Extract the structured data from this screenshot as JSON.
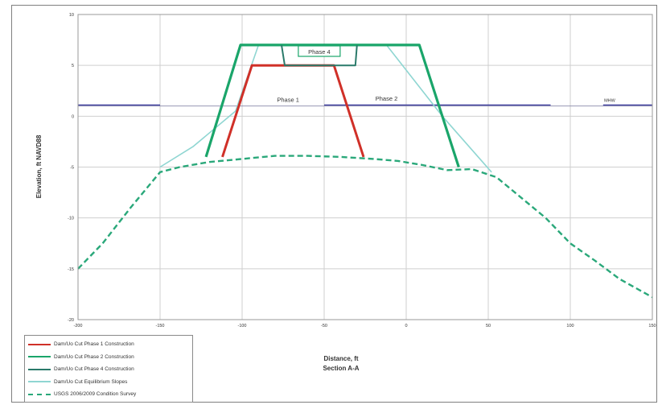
{
  "chart_data": {
    "type": "line",
    "title": "",
    "xlabel": "Distance, ft",
    "xlabel2": "Section A-A",
    "ylabel": "Elevation, ft NAVD88",
    "xlim": [
      -200,
      150
    ],
    "ylim": [
      -20,
      10
    ],
    "xticks": [
      -200,
      -150,
      -100,
      -50,
      0,
      50,
      100,
      150
    ],
    "xtick_labels": [
      "-200",
      "-150",
      "-100",
      "-50",
      "0",
      "50",
      "100",
      "150"
    ],
    "yticks": [
      -20,
      -15,
      -10,
      -5,
      0,
      5,
      10
    ],
    "ytick_labels": [
      "-20",
      "-15",
      "-10",
      "-5",
      "0",
      "5",
      "10"
    ],
    "grid": true,
    "legend_position": "bottom-left",
    "series": [
      {
        "name": "Dam/Uo Cut Phase 1 Construction",
        "color": "#d03028",
        "width": 3,
        "dash": "",
        "points": [
          [
            -112,
            -4
          ],
          [
            -94,
            5
          ],
          [
            -44,
            5
          ],
          [
            -26,
            -4
          ]
        ]
      },
      {
        "name": "Dam/Uo Cut Phase 2 Construction",
        "color": "#1aa56a",
        "width": 3.2,
        "dash": "",
        "points": [
          [
            -122,
            -4
          ],
          [
            -101,
            7
          ],
          [
            8,
            7
          ],
          [
            32,
            -5
          ]
        ]
      },
      {
        "name": "Dam/Uo Cut Phase 4 Construction",
        "color": "#2a7a6a",
        "width": 2,
        "dash": "",
        "points": [
          [
            -76,
            7
          ],
          [
            -74,
            5
          ],
          [
            -31,
            5
          ],
          [
            -30,
            7
          ]
        ]
      },
      {
        "name": "Dam/Uo Cut Equilibrium Slopes",
        "color": "#8fd6d2",
        "width": 1.6,
        "dash": "",
        "points": [
          [
            -150,
            -5
          ],
          [
            -130,
            -3
          ],
          [
            -104,
            0.5
          ],
          [
            -90,
            7
          ],
          [
            -12,
            7
          ],
          [
            22,
            0
          ],
          [
            52,
            -5.5
          ]
        ]
      },
      {
        "name": "USGS 2006/2009 Condition Survey",
        "color": "#2aa87a",
        "width": 2.4,
        "dash": "7,4",
        "points": [
          [
            -200,
            -15
          ],
          [
            -185,
            -12.5
          ],
          [
            -168,
            -9
          ],
          [
            -150,
            -5.5
          ],
          [
            -138,
            -5
          ],
          [
            -120,
            -4.5
          ],
          [
            -100,
            -4.2
          ],
          [
            -80,
            -3.9
          ],
          [
            -60,
            -3.9
          ],
          [
            -40,
            -4
          ],
          [
            -20,
            -4.2
          ],
          [
            -5,
            -4.4
          ],
          [
            10,
            -4.8
          ],
          [
            25,
            -5.3
          ],
          [
            40,
            -5.2
          ],
          [
            55,
            -6
          ],
          [
            70,
            -8
          ],
          [
            85,
            -10
          ],
          [
            100,
            -12.5
          ],
          [
            115,
            -14.2
          ],
          [
            130,
            -16
          ],
          [
            150,
            -17.8
          ]
        ]
      }
    ],
    "mhw_lines": [
      {
        "x1": -200,
        "x2": -150,
        "y": 1.1
      },
      {
        "x1": -50,
        "x2": 88,
        "y": 1.1
      },
      {
        "x1": 120,
        "x2": 150,
        "y": 1.1
      }
    ],
    "baseline": {
      "y": 1.0
    },
    "annotations": [
      {
        "text": "Phase 4",
        "x": -53,
        "y": 6.2,
        "boxed": true
      },
      {
        "text": "Phase 1",
        "x": -72,
        "y": 1.5,
        "boxed": false
      },
      {
        "text": "Phase 2",
        "x": -12,
        "y": 1.6,
        "boxed": false
      },
      {
        "text": "MHW",
        "x": 124,
        "y": 1.5,
        "boxed": false
      }
    ],
    "colors": {
      "grid": "#cfcfcf",
      "axis": "#9a9a9a",
      "mhw": "#3a3a9a",
      "baseline": "#8888aa",
      "text": "#333333"
    }
  }
}
